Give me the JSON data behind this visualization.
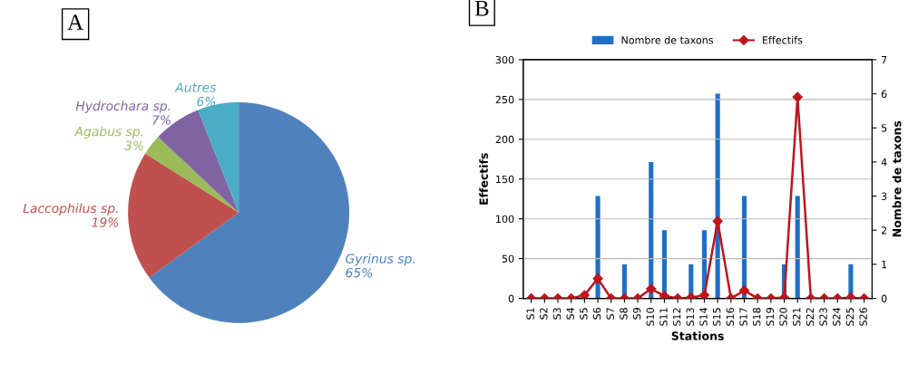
{
  "chart_data": [
    {
      "type": "pie",
      "annotations": [
        "A"
      ],
      "categories": [
        "Gyrinus sp.",
        "Laccophilus sp.",
        "Agabus sp.",
        "Hydrochara sp.",
        "Autres"
      ],
      "values": [
        65,
        19,
        3,
        7,
        6
      ],
      "value_labels": [
        "65%",
        "19%",
        "3%",
        "7%",
        "6%"
      ],
      "colors": [
        "#4f81bd",
        "#c0504d",
        "#9bbb59",
        "#8064a2",
        "#4bacc6"
      ]
    },
    {
      "type": "bar",
      "annotations": [
        "B"
      ],
      "xlabel": "Stations",
      "ylabel": "Effectifs",
      "y2label": "Nombre de taxons",
      "categories": [
        "S1",
        "S2",
        "S3",
        "S4",
        "S5",
        "S6",
        "S7",
        "S8",
        "S9",
        "S10",
        "S11",
        "S12",
        "S13",
        "S14",
        "S15",
        "S16",
        "S17",
        "S18",
        "S19",
        "S20",
        "S21",
        "S22",
        "S23",
        "S24",
        "S25",
        "S26"
      ],
      "series": [
        {
          "name": "Nombre de taxons",
          "type": "bar",
          "axis": "y2",
          "color": "#1f6fc5",
          "values": [
            0,
            0,
            0,
            0,
            0,
            3,
            0,
            1,
            0,
            4,
            2,
            0,
            1,
            2,
            6,
            0,
            3,
            0,
            0,
            1,
            3,
            0,
            0,
            0,
            1,
            0
          ]
        },
        {
          "name": "Effectifs",
          "type": "line",
          "color": "#c0141c",
          "marker": "diamond",
          "values": [
            0,
            0,
            0,
            0,
            4,
            25,
            0,
            0,
            0,
            12,
            3,
            0,
            1,
            4,
            97,
            0,
            10,
            0,
            0,
            1,
            253,
            0,
            0,
            0,
            1,
            0
          ]
        }
      ],
      "ylim": [
        0,
        300
      ],
      "yticks": [
        0,
        50,
        100,
        150,
        200,
        250,
        300
      ],
      "y2lim": [
        0,
        7
      ],
      "y2ticks": [
        0,
        1,
        2,
        3,
        4,
        5,
        6,
        7
      ],
      "grid": "y",
      "legend": "top"
    }
  ]
}
